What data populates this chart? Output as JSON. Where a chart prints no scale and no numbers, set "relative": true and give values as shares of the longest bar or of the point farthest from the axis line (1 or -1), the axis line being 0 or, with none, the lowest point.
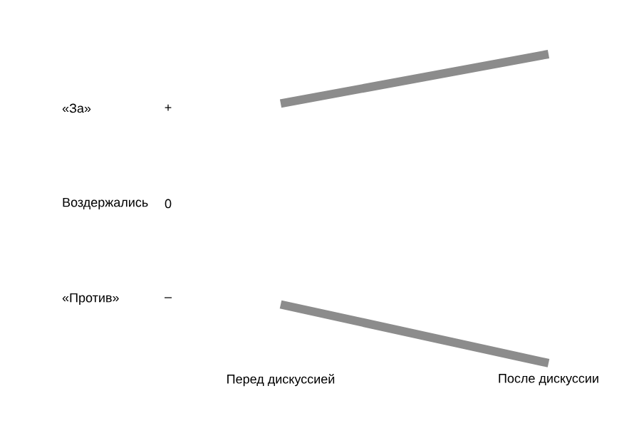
{
  "chart_data": {
    "type": "line",
    "relative": true,
    "categories": [
      "Перед дискуссией",
      "После дискуссии"
    ],
    "series": [
      {
        "color": "#8c8c8c",
        "values": [
          0.84,
          1.0
        ]
      },
      {
        "color": "#8c8c8c",
        "values": [
          0.19,
          0.0
        ]
      }
    ],
    "annotations": [
      "«За»",
      "+",
      "Воздержались",
      "0",
      "«Против»",
      "–"
    ]
  }
}
